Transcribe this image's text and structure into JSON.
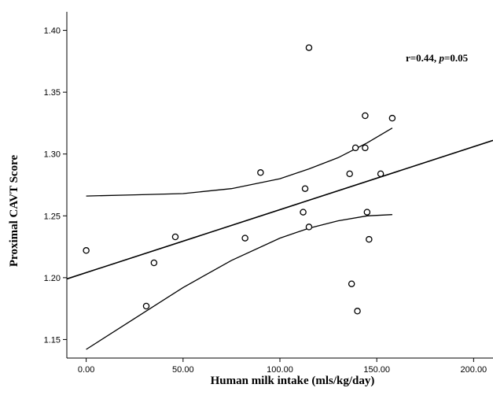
{
  "chart_data": {
    "type": "scatter",
    "xlabel": "Human milk intake (mls/kg/day)",
    "ylabel": "Proximal CAVT Score",
    "xlim": [
      -10,
      210
    ],
    "ylim": [
      1.135,
      1.415
    ],
    "x_ticks": [
      "0.00",
      "50.00",
      "100.00",
      "150.00",
      "200.00"
    ],
    "x_tick_values": [
      0,
      50,
      100,
      150,
      200
    ],
    "y_ticks": [
      "1.15",
      "1.20",
      "1.25",
      "1.30",
      "1.35",
      "1.40"
    ],
    "y_tick_values": [
      1.15,
      1.2,
      1.25,
      1.3,
      1.35,
      1.4
    ],
    "annotation": {
      "prefix": "r=0.44, ",
      "p_symbol": "p",
      "suffix": "=0.05"
    },
    "points": [
      {
        "x": 0,
        "y": 1.222
      },
      {
        "x": 31,
        "y": 1.177
      },
      {
        "x": 35,
        "y": 1.212
      },
      {
        "x": 46,
        "y": 1.233
      },
      {
        "x": 82,
        "y": 1.232
      },
      {
        "x": 90,
        "y": 1.285
      },
      {
        "x": 112,
        "y": 1.253
      },
      {
        "x": 113,
        "y": 1.272
      },
      {
        "x": 115,
        "y": 1.241
      },
      {
        "x": 115,
        "y": 1.386
      },
      {
        "x": 136,
        "y": 1.284
      },
      {
        "x": 137,
        "y": 1.195
      },
      {
        "x": 139,
        "y": 1.305
      },
      {
        "x": 140,
        "y": 1.173
      },
      {
        "x": 144,
        "y": 1.305
      },
      {
        "x": 144,
        "y": 1.331
      },
      {
        "x": 145,
        "y": 1.253
      },
      {
        "x": 146,
        "y": 1.231
      },
      {
        "x": 152,
        "y": 1.284
      },
      {
        "x": 158,
        "y": 1.329
      }
    ],
    "regression_line": {
      "x": [
        -10,
        210
      ],
      "y": [
        1.199,
        1.311
      ]
    },
    "ci_upper": {
      "x": [
        0,
        25,
        50,
        75,
        100,
        115,
        130,
        145,
        158
      ],
      "y": [
        1.266,
        1.267,
        1.268,
        1.272,
        1.28,
        1.288,
        1.297,
        1.309,
        1.321
      ]
    },
    "ci_lower": {
      "x": [
        0,
        25,
        50,
        75,
        100,
        115,
        130,
        145,
        158
      ],
      "y": [
        1.142,
        1.167,
        1.192,
        1.214,
        1.232,
        1.24,
        1.246,
        1.25,
        1.251
      ]
    },
    "colors": {
      "line": "#000000",
      "marker_stroke": "#000000",
      "background": "#ffffff"
    }
  }
}
